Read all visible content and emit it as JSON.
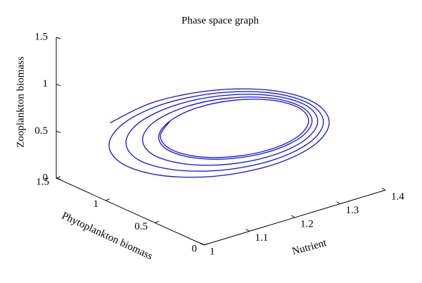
{
  "chart_data": {
    "type": "line3d",
    "title": "Phase space graph",
    "xlabel": "Nutrient",
    "ylabel": "Phytoplankton biomass",
    "zlabel": "Zooplankton biomass",
    "xlim": [
      1,
      1.4
    ],
    "ylim": [
      0,
      1.5
    ],
    "zlim": [
      0,
      1.5
    ],
    "xticks": [
      1,
      1.1,
      1.2,
      1.3,
      1.4
    ],
    "yticks": [
      0,
      0.5,
      1,
      1.5
    ],
    "zticks": [
      0,
      0.5,
      1,
      1.5
    ],
    "series": [
      {
        "color": "#1010e0",
        "x": [
          1.016,
          1.088,
          1.184,
          1.279,
          1.347,
          1.372,
          1.347,
          1.28,
          1.19,
          1.102,
          1.039,
          1.017,
          1.043,
          1.109,
          1.196,
          1.282,
          1.343,
          1.366,
          1.343,
          1.283,
          1.202,
          1.123,
          1.066,
          1.048,
          1.071,
          1.13,
          1.208,
          1.285,
          1.34,
          1.36,
          1.339,
          1.286,
          1.214,
          1.144,
          1.094,
          1.078,
          1.098,
          1.151,
          1.22,
          1.288,
          1.336,
          1.354,
          1.336,
          1.289,
          1.226,
          1.165,
          1.121,
          1.107,
          1.126,
          1.17,
          1.23,
          1.29,
          1.334,
          1.35,
          1.334,
          1.29,
          1.23,
          1.17,
          1.126,
          1.11,
          1.126
        ],
        "y": [
          1.027,
          0.909,
          0.75,
          0.594,
          0.482,
          0.442,
          0.486,
          0.599,
          0.75,
          0.899,
          1.005,
          1.043,
          1.001,
          0.894,
          0.75,
          0.609,
          0.508,
          0.473,
          0.512,
          0.614,
          0.75,
          0.884,
          0.979,
          1.013,
          0.975,
          0.879,
          0.75,
          0.624,
          0.533,
          0.503,
          0.538,
          0.629,
          0.75,
          0.869,
          0.954,
          0.983,
          0.949,
          0.864,
          0.75,
          0.639,
          0.559,
          0.533,
          0.564,
          0.644,
          0.75,
          0.854,
          0.928,
          0.953,
          0.923,
          0.85,
          0.75,
          0.65,
          0.577,
          0.55,
          0.577,
          0.65,
          0.75,
          0.85,
          0.923,
          0.95,
          0.923
        ],
        "z": [
          0.79,
          0.963,
          1.023,
          0.956,
          0.783,
          0.55,
          0.321,
          0.157,
          0.1,
          0.164,
          0.329,
          0.55,
          0.768,
          0.924,
          0.978,
          0.917,
          0.76,
          0.55,
          0.344,
          0.196,
          0.145,
          0.203,
          0.351,
          0.55,
          0.745,
          0.885,
          0.933,
          0.878,
          0.738,
          0.55,
          0.366,
          0.235,
          0.19,
          0.242,
          0.374,
          0.55,
          0.723,
          0.846,
          0.888,
          0.839,
          0.715,
          0.55,
          0.389,
          0.274,
          0.235,
          0.281,
          0.396,
          0.55,
          0.7,
          0.81,
          0.85,
          0.81,
          0.7,
          0.55,
          0.4,
          0.29,
          0.25,
          0.29,
          0.4,
          0.55,
          0.7
        ]
      }
    ]
  }
}
